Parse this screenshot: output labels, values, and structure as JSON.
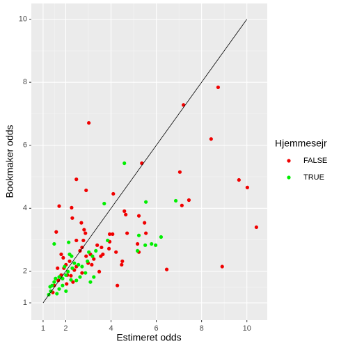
{
  "chart_data": {
    "type": "scatter",
    "x_label": "Estimeret odds",
    "y_label": "Bookmaker odds",
    "legend_title": "Hjemmesejr",
    "legend_position": "right",
    "grid": true,
    "xlim": [
      0.48,
      10.9
    ],
    "ylim": [
      0.45,
      10.5
    ],
    "xticks": [
      1,
      2,
      4,
      6,
      8,
      10
    ],
    "yticks": [
      1,
      2,
      4,
      6,
      8,
      10
    ],
    "reference_line": {
      "x": [
        1,
        10
      ],
      "y": [
        1,
        10
      ],
      "color": "#000000"
    },
    "series": [
      {
        "name": "FALSE",
        "color": "#f00000",
        "x": [
          3.02,
          7.2,
          8.73,
          8.42,
          5.36,
          7.04,
          9.65,
          10.02,
          10.42,
          7.44,
          7.13,
          6.46,
          8.91,
          2.47,
          2.9,
          1.71,
          2.26,
          4.1,
          1.58,
          2.29,
          4.59,
          4.65,
          2.69,
          5.23,
          5.48,
          5.54,
          2.81,
          2.87,
          3.94,
          4.07,
          3.94,
          4.71,
          2.78,
          3.39,
          3.58,
          3.91,
          3.09,
          3.64,
          3.55,
          4.22,
          4.5,
          4.47,
          5.23,
          3.24,
          3.48,
          4.28,
          5.17,
          2.63,
          2.72,
          1.8,
          1.89,
          2.01,
          2.17,
          1.92,
          1.8,
          2.07,
          2.23,
          1.67,
          1.49,
          2.47,
          2.38,
          2.72,
          2.32,
          2.04,
          2.9,
          2.99,
          3.15,
          2.47,
          1.64,
          1.43
        ],
        "values": [
          6.71,
          7.28,
          7.84,
          6.2,
          5.43,
          5.15,
          4.9,
          4.66,
          3.4,
          4.26,
          4.09,
          2.06,
          2.15,
          4.92,
          4.57,
          4.07,
          4.02,
          4.46,
          3.25,
          3.69,
          3.91,
          3.8,
          3.54,
          3.76,
          3.54,
          3.21,
          3.32,
          3.21,
          3.18,
          3.18,
          2.94,
          3.21,
          2.98,
          2.83,
          2.76,
          2.72,
          2.54,
          2.54,
          2.48,
          2.61,
          2.32,
          2.21,
          2.61,
          2.39,
          1.99,
          1.55,
          2.87,
          2.65,
          2.76,
          2.54,
          2.43,
          2.21,
          2.32,
          2.1,
          1.88,
          1.88,
          1.86,
          1.71,
          1.55,
          2.15,
          2.04,
          1.95,
          1.66,
          1.6,
          2.48,
          2.26,
          2.21,
          2.98,
          2.1,
          1.33
        ]
      },
      {
        "name": "TRUE",
        "color": "#00ee00",
        "x": [
          4.59,
          5.54,
          6.86,
          3.7,
          6.21,
          5.23,
          5.79,
          5.97,
          5.51,
          5.17,
          1.49,
          2.13,
          3.85,
          3.33,
          3.02,
          3.18,
          2.96,
          2.17,
          2.26,
          2.38,
          2.56,
          2.72,
          2.87,
          3.24,
          3.09,
          2.63,
          2.47,
          2.23,
          2.01,
          1.86,
          1.71,
          1.55,
          1.49,
          1.4,
          1.31,
          1.34,
          1.25,
          1.86,
          1.71,
          2.01,
          1.61,
          2.1,
          2.29,
          1.95
        ],
        "values": [
          5.43,
          4.2,
          4.24,
          4.15,
          3.09,
          3.14,
          2.87,
          2.83,
          2.83,
          2.65,
          2.87,
          2.92,
          2.98,
          2.65,
          2.61,
          2.48,
          2.32,
          2.54,
          2.48,
          2.26,
          2.21,
          2.15,
          1.95,
          1.82,
          1.66,
          1.82,
          1.71,
          1.73,
          1.88,
          1.77,
          1.82,
          1.77,
          1.66,
          1.55,
          1.51,
          1.37,
          1.26,
          1.55,
          1.44,
          1.37,
          1.29,
          1.99,
          2.1,
          2.15
        ]
      }
    ]
  }
}
